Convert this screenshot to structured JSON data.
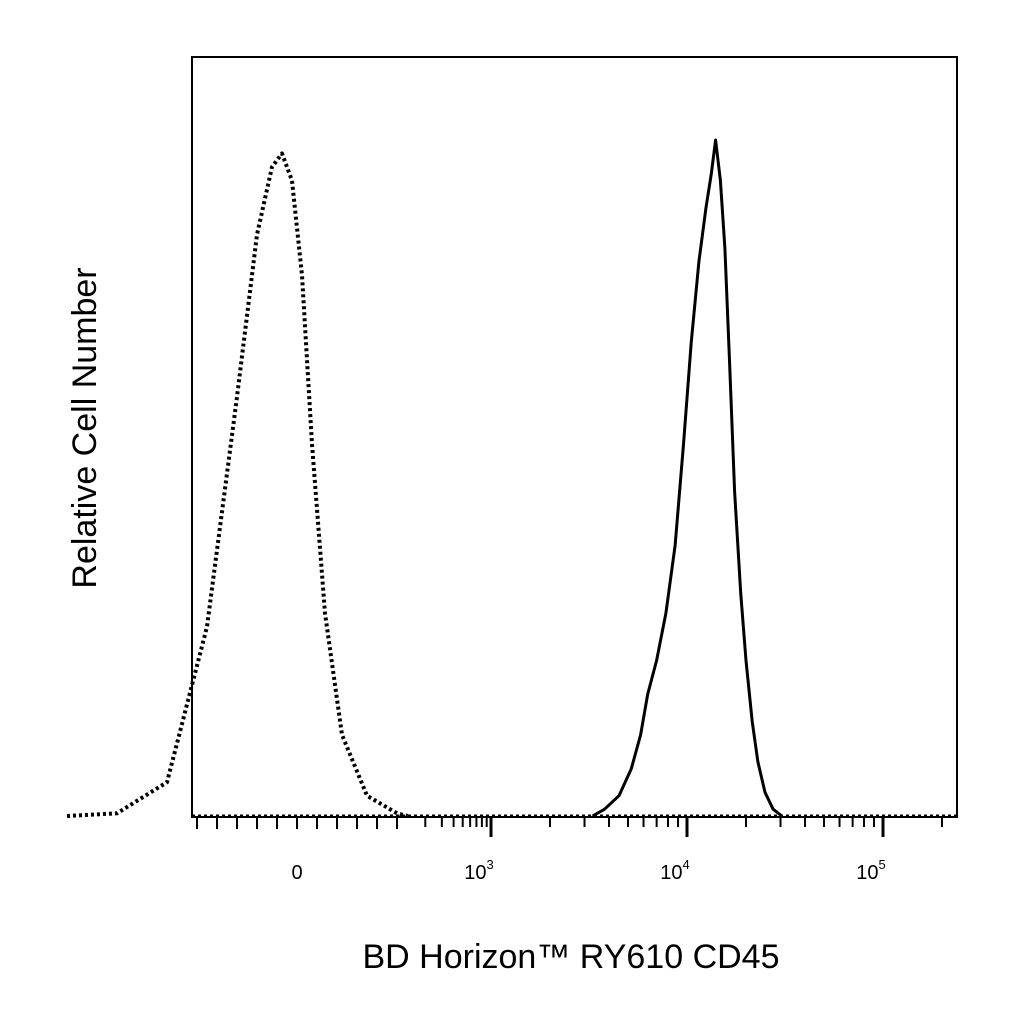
{
  "chart_data": {
    "type": "line",
    "title": "",
    "xlabel": "BD Horizon™ RY610 CD45",
    "ylabel": "Relative Cell Number",
    "x_scale": "biexponential",
    "xlim": [
      -250,
      130000
    ],
    "ylim": [
      0,
      100
    ],
    "grid": false,
    "legend": "none",
    "x_ticks": [
      {
        "value": 0,
        "label": "0",
        "base": "",
        "exp": ""
      },
      {
        "value": 1000,
        "label": "10^3",
        "base": "10",
        "exp": "3"
      },
      {
        "value": 10000,
        "label": "10^4",
        "base": "10",
        "exp": "4"
      },
      {
        "value": 100000,
        "label": "10^5",
        "base": "10",
        "exp": "5"
      }
    ],
    "series": [
      {
        "style": "dotted",
        "color": "#000000",
        "x": [
          -230,
          -180,
          -130,
          -90,
          -60,
          -40,
          -25,
          -15,
          -5,
          5,
          15,
          28,
          45,
          70,
          100,
          130
        ],
        "y": [
          0,
          0.4,
          5,
          28,
          62,
          86,
          96,
          98,
          94,
          80,
          55,
          30,
          12,
          3,
          0.4,
          0
        ]
      },
      {
        "style": "solid",
        "color": "#000000",
        "x": [
          3300,
          3800,
          4500,
          5200,
          5800,
          6300,
          7000,
          7800,
          8700,
          9600,
          10500,
          11500,
          12500,
          13300,
          14000,
          14800,
          15600,
          16500,
          17500,
          18800,
          20000,
          21500,
          23000,
          25000,
          27500,
          30500
        ],
        "y": [
          0,
          1,
          3,
          7,
          12,
          18,
          23,
          30,
          40,
          55,
          70,
          82,
          90,
          95,
          100,
          94,
          84,
          67,
          48,
          33,
          23,
          14,
          8,
          3.5,
          1,
          0
        ]
      }
    ]
  }
}
